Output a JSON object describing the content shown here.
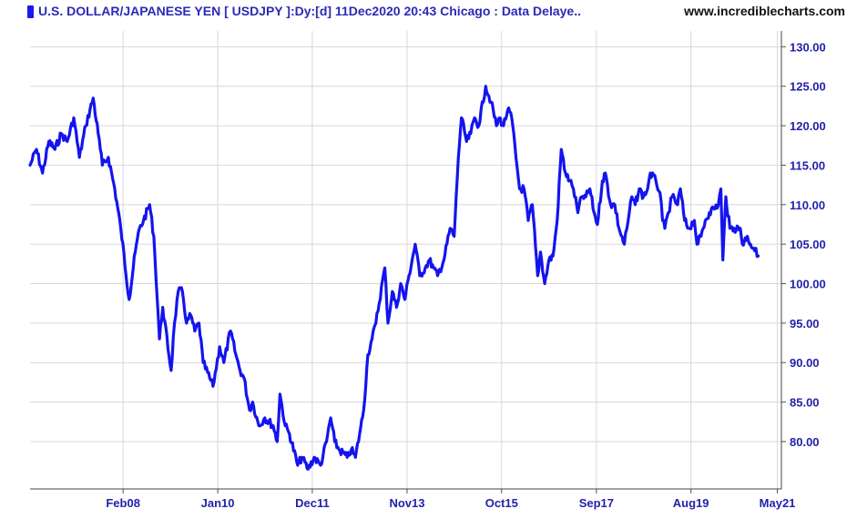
{
  "header": {
    "title": "U.S. DOLLAR/JAPANESE YEN [ USDJPY ]:Dy:[d]  11Dec2020 20:43 Chicago : Data Delaye..",
    "site": "www.incrediblecharts.com"
  },
  "colors": {
    "line": "#1414ee",
    "axis_text": "#2222aa",
    "grid": "#d6d6de",
    "marker": "#1a1aee"
  },
  "chart_data": {
    "type": "line",
    "title": "U.S. DOLLAR/JAPANESE YEN [ USDJPY ]:Dy:[d]  11Dec2020 20:43 Chicago : Data Delaye..",
    "xlabel": "",
    "ylabel": "",
    "ylim": [
      74,
      132
    ],
    "y_ticks": [
      80,
      85,
      90,
      95,
      100,
      105,
      110,
      115,
      120,
      125,
      130
    ],
    "y_tick_labels": [
      "80.00",
      "85.00",
      "90.00",
      "95.00",
      "100.00",
      "105.00",
      "110.00",
      "115.00",
      "120.00",
      "125.00",
      "130.00"
    ],
    "xlim": [
      "2006-03-15",
      "2021-05-31"
    ],
    "x_ticks": [
      "2008-02-01",
      "2010-01-01",
      "2011-12-01",
      "2013-11-01",
      "2015-10-01",
      "2017-09-01",
      "2019-08-01",
      "2021-05-01"
    ],
    "x_tick_labels": [
      "Feb08",
      "Jan10",
      "Dec11",
      "Nov13",
      "Oct15",
      "Sep17",
      "Aug19",
      "May21"
    ],
    "y_axis_position": "right",
    "grid": true,
    "legend": "none",
    "series": [
      {
        "x": [
          "2006-03-15",
          "2006-05-01",
          "2006-06-15",
          "2006-08-01",
          "2006-09-15",
          "2006-11-01",
          "2006-12-15",
          "2007-02-01",
          "2007-03-15",
          "2007-05-01",
          "2007-06-25",
          "2007-08-01",
          "2007-09-01",
          "2007-10-15",
          "2007-12-01",
          "2008-01-15",
          "2008-03-17",
          "2008-05-01",
          "2008-06-01",
          "2008-07-01",
          "2008-08-15",
          "2008-09-15",
          "2008-10-27",
          "2008-11-20",
          "2009-01-21",
          "2009-02-15",
          "2009-03-15",
          "2009-04-15",
          "2009-05-15",
          "2009-06-15",
          "2009-07-15",
          "2009-08-15",
          "2009-09-15",
          "2009-11-27",
          "2010-01-15",
          "2010-02-15",
          "2010-04-05",
          "2010-05-15",
          "2010-06-15",
          "2010-07-15",
          "2010-08-24",
          "2010-09-15",
          "2010-11-01",
          "2010-12-15",
          "2011-02-15",
          "2011-03-17",
          "2011-04-06",
          "2011-05-15",
          "2011-06-15",
          "2011-08-15",
          "2011-09-15",
          "2011-10-31",
          "2011-12-15",
          "2012-01-31",
          "2012-03-15",
          "2012-04-15",
          "2012-05-15",
          "2012-06-15",
          "2012-08-15",
          "2012-09-15",
          "2012-10-15",
          "2012-11-15",
          "2012-12-15",
          "2013-01-15",
          "2013-02-15",
          "2013-03-15",
          "2013-05-20",
          "2013-06-13",
          "2013-07-15",
          "2013-08-15",
          "2013-09-15",
          "2013-10-15",
          "2013-11-15",
          "2013-12-31",
          "2014-02-03",
          "2014-03-15",
          "2014-04-15",
          "2014-05-15",
          "2014-06-15",
          "2014-07-31",
          "2014-09-15",
          "2014-10-15",
          "2014-11-15",
          "2014-12-08",
          "2015-01-15",
          "2015-02-15",
          "2015-03-15",
          "2015-04-15",
          "2015-06-05",
          "2015-07-15",
          "2015-08-24",
          "2015-09-15",
          "2015-10-15",
          "2015-11-15",
          "2015-12-15",
          "2016-01-15",
          "2016-02-11",
          "2016-03-15",
          "2016-04-15",
          "2016-05-15",
          "2016-06-24",
          "2016-07-15",
          "2016-08-15",
          "2016-09-15",
          "2016-10-15",
          "2016-11-15",
          "2016-12-15",
          "2017-01-15",
          "2017-02-15",
          "2017-03-15",
          "2017-04-17",
          "2017-05-15",
          "2017-06-15",
          "2017-07-15",
          "2017-08-15",
          "2017-09-08",
          "2017-10-15",
          "2017-11-06",
          "2017-12-15",
          "2018-01-15",
          "2018-02-15",
          "2018-03-26",
          "2018-04-15",
          "2018-05-21",
          "2018-06-15",
          "2018-07-15",
          "2018-08-15",
          "2018-09-15",
          "2018-10-04",
          "2018-11-15",
          "2018-12-15",
          "2019-01-03",
          "2019-01-20",
          "2019-02-15",
          "2019-03-15",
          "2019-04-24",
          "2019-05-15",
          "2019-06-15",
          "2019-07-15",
          "2019-08-26",
          "2019-09-15",
          "2019-10-15",
          "2019-11-15",
          "2019-12-15",
          "2020-01-15",
          "2020-02-20",
          "2020-03-09",
          "2020-03-24",
          "2020-04-15",
          "2020-05-15",
          "2020-06-15",
          "2020-07-31",
          "2020-08-15",
          "2020-09-21",
          "2020-10-15",
          "2020-11-06",
          "2020-12-11"
        ],
        "values": [
          115,
          117,
          114,
          118,
          117,
          119,
          118,
          121,
          116,
          120,
          123.5,
          119,
          115,
          116,
          112,
          107,
          98,
          104,
          107,
          108,
          110,
          106,
          93,
          97,
          89,
          95,
          99,
          99,
          95,
          96,
          94,
          95,
          90,
          87,
          92,
          90,
          94,
          91,
          89,
          88,
          84,
          85,
          82,
          83,
          82,
          80,
          86,
          82,
          81,
          77,
          78,
          76.5,
          78,
          77,
          80,
          83,
          80,
          79,
          78,
          79,
          78,
          81,
          84,
          91,
          93,
          95,
          102,
          95,
          99,
          97,
          100,
          98,
          101,
          105,
          101,
          102,
          103,
          102,
          101,
          103,
          107,
          106,
          116,
          121,
          118,
          119,
          121,
          120,
          125,
          123,
          120,
          121,
          120,
          122,
          121,
          116,
          112,
          112,
          108,
          110,
          101,
          104,
          100,
          103,
          103.5,
          108,
          117,
          114,
          113,
          112,
          109,
          111,
          111,
          112,
          109,
          107.5,
          113,
          114,
          110,
          110,
          107,
          105,
          107,
          111,
          110,
          112,
          111,
          112,
          114,
          113,
          111.5,
          108,
          107,
          109,
          111,
          110,
          112,
          108,
          107,
          108,
          105,
          106,
          108,
          109,
          109.5,
          110,
          112,
          103,
          111,
          107,
          107,
          107,
          105,
          106,
          105,
          104.5,
          103.5
        ]
      }
    ]
  }
}
